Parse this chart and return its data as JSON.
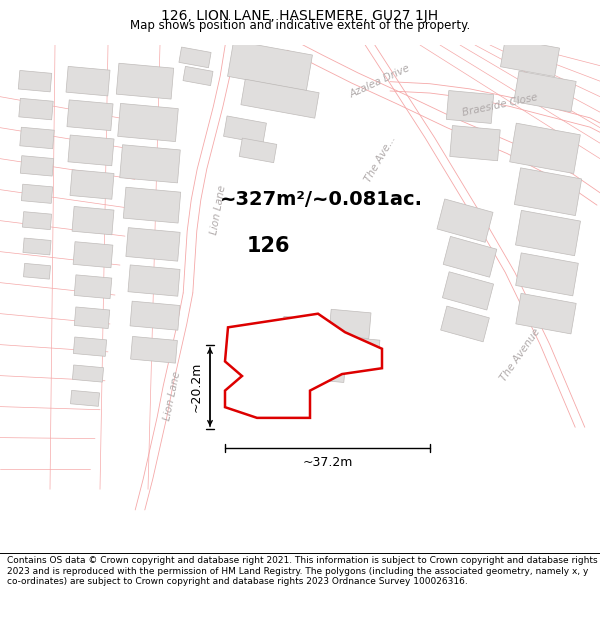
{
  "title": "126, LION LANE, HASLEMERE, GU27 1JH",
  "subtitle": "Map shows position and indicative extent of the property.",
  "footer": "Contains OS data © Crown copyright and database right 2021. This information is subject to Crown copyright and database rights 2023 and is reproduced with the permission of HM Land Registry. The polygons (including the associated geometry, namely x, y co-ordinates) are subject to Crown copyright and database rights 2023 Ordnance Survey 100026316.",
  "area_label": "~327m²/~0.081ac.",
  "dim_width": "~37.2m",
  "dim_height": "~20.2m",
  "map_bg": "#ffffff",
  "building_fill": "#e0dedd",
  "building_ec": "#c0bcba",
  "road_line_color": "#f5a8a8",
  "boundary_color": "#dd0000",
  "boundary_lw": 1.8,
  "title_fontsize": 10,
  "subtitle_fontsize": 8.5,
  "footer_fontsize": 6.5,
  "road_label_color": "#b0aaaa",
  "road_label_fontsize": 7.5
}
